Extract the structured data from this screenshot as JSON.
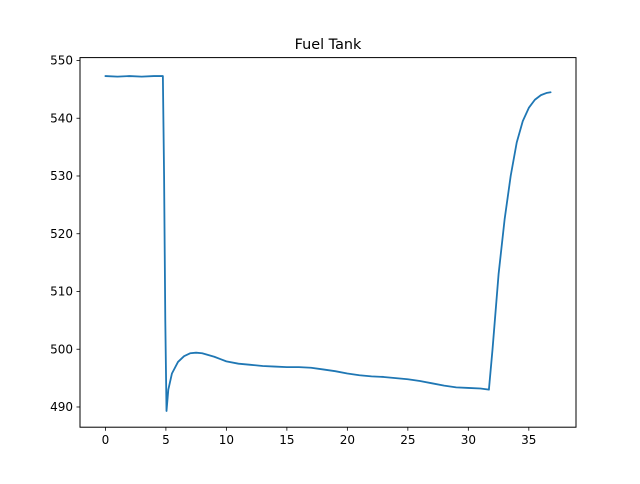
{
  "chart_data": {
    "type": "line",
    "title": "Fuel Tank",
    "xlabel": "",
    "ylabel": "",
    "xlim": [
      -2.1,
      38.9
    ],
    "ylim": [
      486.5,
      550.5
    ],
    "xticks": [
      0,
      5,
      10,
      15,
      20,
      25,
      30,
      35
    ],
    "yticks": [
      490,
      500,
      510,
      520,
      530,
      540,
      550
    ],
    "grid": false,
    "line_color": "#1f77b4",
    "series": [
      {
        "x": [
          0,
          1,
          2,
          3,
          4,
          4.75,
          4.85,
          4.95,
          5.05,
          5.2,
          5.5,
          6,
          6.5,
          7,
          7.5,
          8,
          8.5,
          9,
          9.5,
          10,
          11,
          12,
          13,
          14,
          15,
          16,
          17,
          18,
          19,
          20,
          21,
          22,
          23,
          24,
          25,
          26,
          27,
          28,
          29,
          30,
          31,
          31.7,
          32,
          32.5,
          33,
          33.5,
          34,
          34.5,
          35,
          35.5,
          36,
          36.5,
          36.8
        ],
        "y": [
          547.3,
          547.2,
          547.3,
          547.2,
          547.3,
          547.3,
          530,
          505,
          489.3,
          493,
          495.8,
          497.8,
          498.8,
          499.3,
          499.4,
          499.3,
          499,
          498.7,
          498.3,
          497.9,
          497.5,
          497.3,
          497.1,
          497,
          496.9,
          496.9,
          496.8,
          496.5,
          496.2,
          495.8,
          495.5,
          495.3,
          495.2,
          495,
          494.8,
          494.5,
          494.1,
          493.7,
          493.4,
          493.3,
          493.2,
          493.0,
          500,
          513,
          522.5,
          530,
          535.8,
          539.5,
          541.8,
          543.2,
          544.0,
          544.4,
          544.5
        ]
      }
    ]
  }
}
